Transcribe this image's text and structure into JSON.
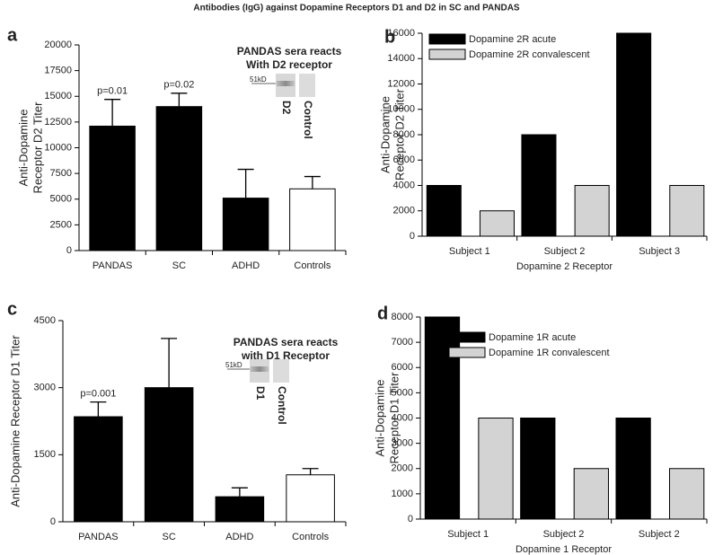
{
  "title": "Antibodies (IgG) against Dopamine Receptors D1 and D2 in SC and PANDAS",
  "chart_data": [
    {
      "type": "bar",
      "label": "a",
      "ylabel": [
        "Anti-Dopamine",
        "Receptor D2 Titer"
      ],
      "categories": [
        "PANDAS",
        "SC",
        "ADHD",
        "Controls"
      ],
      "values": [
        12100,
        14000,
        5100,
        6000
      ],
      "errors": [
        2600,
        1300,
        2800,
        1200
      ],
      "colors": [
        "#000000",
        "#000000",
        "#000000",
        "#ffffff"
      ],
      "ylim": [
        0,
        20000
      ],
      "yticks": [
        0,
        2500,
        5000,
        7500,
        10000,
        12500,
        15000,
        17500,
        20000
      ],
      "annotations": [
        {
          "text": "p=0.01",
          "category": "PANDAS"
        },
        {
          "text": "p=0.02",
          "category": "SC"
        }
      ],
      "inset": {
        "title": [
          "PANDAS sera reacts",
          "With D2 receptor"
        ],
        "marker": "51kD",
        "lanes": [
          "D2",
          "Control"
        ]
      }
    },
    {
      "type": "grouped-bar",
      "label": "b",
      "ylabel": [
        "Anti-Dopamine",
        "Receptor D2 Titer"
      ],
      "xlabel": "Dopamine 2 Receptor",
      "categories": [
        "Subject 1",
        "Subject 2",
        "Subject 3"
      ],
      "series": [
        {
          "name": "Dopamine 2R acute",
          "color": "#000000",
          "values": [
            4000,
            8000,
            16000
          ]
        },
        {
          "name": "Dopamine 2R convalescent",
          "color": "#d3d3d3",
          "values": [
            2000,
            4000,
            4000
          ]
        }
      ],
      "ylim": [
        0,
        16000
      ],
      "yticks": [
        0,
        2000,
        4000,
        6000,
        8000,
        10000,
        12000,
        14000,
        16000
      ],
      "legend": "upper left"
    },
    {
      "type": "bar",
      "label": "c",
      "ylabel": "Anti-Dopamine Receptor D1 Titer",
      "categories": [
        "PANDAS",
        "SC",
        "ADHD",
        "Controls"
      ],
      "values": [
        2350,
        3000,
        560,
        1050
      ],
      "errors": [
        330,
        1100,
        200,
        140
      ],
      "colors": [
        "#000000",
        "#000000",
        "#000000",
        "#ffffff"
      ],
      "ylim": [
        0,
        4500
      ],
      "yticks": [
        0,
        1500,
        3000,
        4500
      ],
      "annotations": [
        {
          "text": "p=0.001",
          "category": "PANDAS"
        }
      ],
      "inset": {
        "title": [
          "PANDAS sera reacts",
          "with D1 Receptor"
        ],
        "marker": "51kD",
        "lanes": [
          "D1",
          "Control"
        ]
      }
    },
    {
      "type": "grouped-bar",
      "label": "d",
      "ylabel": [
        "Anti-Dopamine",
        "Receptor D1 Titer"
      ],
      "xlabel": "Dopamine 1 Receptor",
      "categories": [
        "Subject 1",
        "Subject 2",
        "Subject 2"
      ],
      "series": [
        {
          "name": "Dopamine 1R acute",
          "color": "#000000",
          "values": [
            8000,
            4000,
            4000
          ]
        },
        {
          "name": "Dopamine 1R convalescent",
          "color": "#d3d3d3",
          "values": [
            4000,
            2000,
            2000
          ]
        }
      ],
      "ylim": [
        0,
        8000
      ],
      "yticks": [
        0,
        1000,
        2000,
        3000,
        4000,
        5000,
        6000,
        7000,
        8000
      ],
      "legend": "upper left"
    }
  ]
}
